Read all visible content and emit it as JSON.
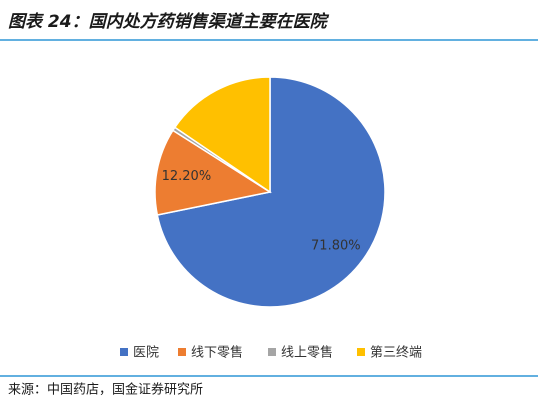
{
  "chart_data": {
    "type": "pie",
    "title": "图表 24：国内处方药销售渠道主要在医院",
    "categories": [
      "医院",
      "线下零售",
      "线上零售",
      "第三终端"
    ],
    "values": [
      71.8,
      12.2,
      0.5,
      15.5
    ],
    "value_labels": [
      "71.80%",
      "12.20%",
      null,
      null
    ],
    "colors": [
      "#4472c4",
      "#ed7d31",
      "#a5a5a5",
      "#ffc000"
    ],
    "legend": "bottom",
    "source": "来源：中国药店，国金证券研究所"
  }
}
